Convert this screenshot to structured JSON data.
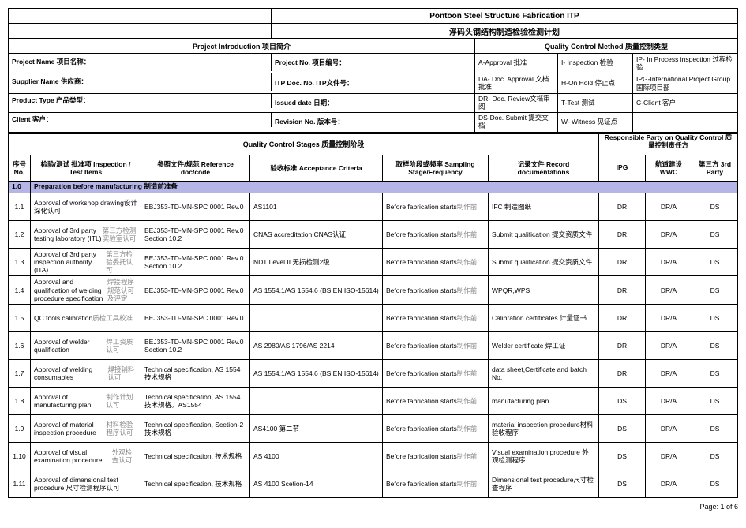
{
  "doc": {
    "title_en": "Pontoon Steel Structure Fabrication ITP",
    "title_zh": "浮码头钢结构制造检验检测计划",
    "proj_intro": "Project Introduction 项目简介",
    "qc_method": "Quality Control Method  质量控制类型",
    "project_name_lbl": "Project Name  项目名称：",
    "project_no_lbl": "Project No.  项目编号：",
    "supplier_lbl": "Supplier Name  供应商：",
    "itp_doc_lbl": "ITP Doc. No. ITP文件号：",
    "product_lbl": "Product Type  产品类型：",
    "issued_lbl": "Issued date 日期：",
    "client_lbl": "Client  客户：",
    "revision_lbl": "Revision No.  版本号：",
    "legend": {
      "a": "A-Approval 批准",
      "i": "I- Inspection 检验",
      "ip": "IP- In Process inspection 过程检验",
      "da": "DA- Doc. Approval 文档批准",
      "h": "H-On Hold 停止点",
      "ipg": "IPG-International Project Group 国际项目部",
      "dr": "DR- Doc. Review文档审阅",
      "t": "T-Test 测试",
      "c": "C-Client 客户",
      "ds": "DS-Doc. Submit 提交文档",
      "w": "W- Witness 见证点"
    },
    "stages_hdr": "Quality Control Stages 质量控制阶段",
    "resp_hdr": "Responsible Party on Quality Control 质量控制责任方",
    "cols": {
      "no": "序号 No.",
      "insp": "检验/测试 批准项 Inspection / Test Items",
      "ref": "参照文件/规范            Reference doc/code",
      "accept": "验收标准                        Acceptance Criteria",
      "samp": "取样阶段或频率            Sampling Stage/Frequency",
      "rec": "记录文件                Record documentations",
      "ipg": "IPG",
      "wwc": "航道建设 WWC",
      "tp": "第三方 3rd Party"
    },
    "sec1": {
      "no": "1.0",
      "title": "Preparation before manufacturing 制造前准备"
    },
    "rows": [
      {
        "no": "1.1",
        "insp_en": "Approval of workshop drawing设计深化认可",
        "insp_grey": "",
        "ref": "EBJ353-TD-MN-SPC 0001 Rev.0",
        "accept": "AS1101",
        "samp_en": "Before fabrication starts",
        "samp_grey": "制作前",
        "rec": "IFC 制造图纸",
        "ipg": "DR",
        "wwc": "DR/A",
        "tp": "DS"
      },
      {
        "no": "1.2",
        "insp_en": "Approval of 3rd party testing laboratory (ITL)",
        "insp_grey": "第三方检测实验室认可",
        "ref": "BEJ353-TD-MN-SPC 0001 Rev.0 Section 10.2",
        "accept": "CNAS accreditation      CNAS认证",
        "samp_en": "Before fabrication starts",
        "samp_grey": "制作前",
        "rec": "Submit qualification 提交资质文件",
        "ipg": "DR",
        "wwc": "DR/A",
        "tp": "DS"
      },
      {
        "no": "1.3",
        "insp_en": "Approval of 3rd party inspection authority (ITA)",
        "insp_grey": "第三方检验委托认可",
        "ref": "BEJ353-TD-MN-SPC 0001 Rev.0 Section 10.2",
        "accept": "NDT Level II  无损检测2级",
        "samp_en": "Before fabrication starts",
        "samp_grey": "制作前",
        "rec": "Submit qualification 提交资质文件",
        "ipg": "DR",
        "wwc": "DR/A",
        "tp": "DS"
      },
      {
        "no": "1.4",
        "insp_en": "Approval and qualification of welding procedure specification",
        "insp_grey": "焊接程序规范认可及评定",
        "ref": "BEJ353-TD-MN-SPC 0001 Rev.0",
        "accept": "AS 1554.1/AS 1554.6 (BS EN ISO-15614)",
        "samp_en": "Before fabrication starts",
        "samp_grey": "制作前",
        "rec": "WPQR,WPS",
        "ipg": "DR",
        "wwc": "DR/A",
        "tp": "DS"
      },
      {
        "no": "1.5",
        "insp_en": "QC tools calibration",
        "insp_grey": "质检工具校准",
        "ref": "BEJ353-TD-MN-SPC 0001 Rev.0",
        "accept": "",
        "samp_en": "Before fabrication starts",
        "samp_grey": "制作前",
        "rec": "Calibration certificates 计量证书",
        "ipg": "DR",
        "wwc": "DR/A",
        "tp": "DS"
      },
      {
        "no": "1.6",
        "insp_en": "Approval of welder qualification",
        "insp_grey": "焊工资质认可",
        "ref": "BEJ353-TD-MN-SPC 0001 Rev.0 Section 10.2",
        "accept": "AS 2980/AS 1796/AS 2214",
        "samp_en": "Before fabrication starts",
        "samp_grey": "制作前",
        "rec": "Welder certificate 焊工证",
        "ipg": "DR",
        "wwc": "DR/A",
        "tp": "DS"
      },
      {
        "no": "1.7",
        "insp_en": "Approval of welding consumables",
        "insp_grey": "焊接辅料认可",
        "ref": "Technical specification, AS 1554 技术规格",
        "accept": "AS 1554.1/AS 1554.6 (BS EN ISO-15614)",
        "samp_en": "Before fabrication starts",
        "samp_grey": "制作前",
        "rec": "data sheet,Certificate and batch No.",
        "ipg": "DR",
        "wwc": "DR/A",
        "tp": "DS"
      },
      {
        "no": "1.8",
        "insp_en": "Approval of manufacturing plan",
        "insp_grey": "制作计划认可",
        "ref": "Technical specification, AS 1554 技术规格。AS1554",
        "accept": "",
        "samp_en": "Before fabrication starts",
        "samp_grey": "制作前",
        "rec": "manufacturing plan",
        "ipg": "DS",
        "wwc": "DR/A",
        "tp": "DS"
      },
      {
        "no": "1.9",
        "insp_en": "Approval of material inspection procedure",
        "insp_grey": "材料检验程序认可",
        "ref": "Technical specification, Scetion-2 技术规格",
        "accept": "AS4100 第二节",
        "samp_en": "Before fabrication starts",
        "samp_grey": "制作前",
        "rec": "material inspection procedure材料验收程序",
        "ipg": "DS",
        "wwc": "DR/A",
        "tp": "DS"
      },
      {
        "no": "1.10",
        "insp_en": "Approval of visual examination procedure",
        "insp_grey": "外观检查认可",
        "ref": "Technical specification, 技术规格",
        "accept": "AS 4100",
        "samp_en": "Before fabrication starts",
        "samp_grey": "制作前",
        "rec": "Visual examination procedure 外观检测程序",
        "ipg": "DS",
        "wwc": "DR/A",
        "tp": "DS"
      },
      {
        "no": "1.11",
        "insp_en": "Approval of dimensional test procedure 尺寸检测程序认可",
        "insp_grey": "",
        "ref": "Technical specification, 技术规格",
        "accept": "AS 4100 Scetion-14",
        "samp_en": "Before fabrication starts",
        "samp_grey": "制作前",
        "rec": "Dimensional test procedure尺寸检查程序",
        "ipg": "DS",
        "wwc": "DR/A",
        "tp": "DS"
      }
    ],
    "footer": "Page: 1 of 6"
  },
  "widths": {
    "left_block": 333,
    "mid_block": 258,
    "right_block": 332,
    "l1": 105,
    "l2": 95,
    "l3": 66,
    "l4": 66,
    "c_no": 28,
    "c_insp": 140,
    "c_ref": 138,
    "c_accept": 168,
    "c_samp": 134,
    "c_rec": 140,
    "c_ipg": 59,
    "c_wwc": 59,
    "c_tp": 57
  },
  "colors": {
    "section_bg": "#b5b5e8",
    "grey_text": "#9a9a9a"
  }
}
